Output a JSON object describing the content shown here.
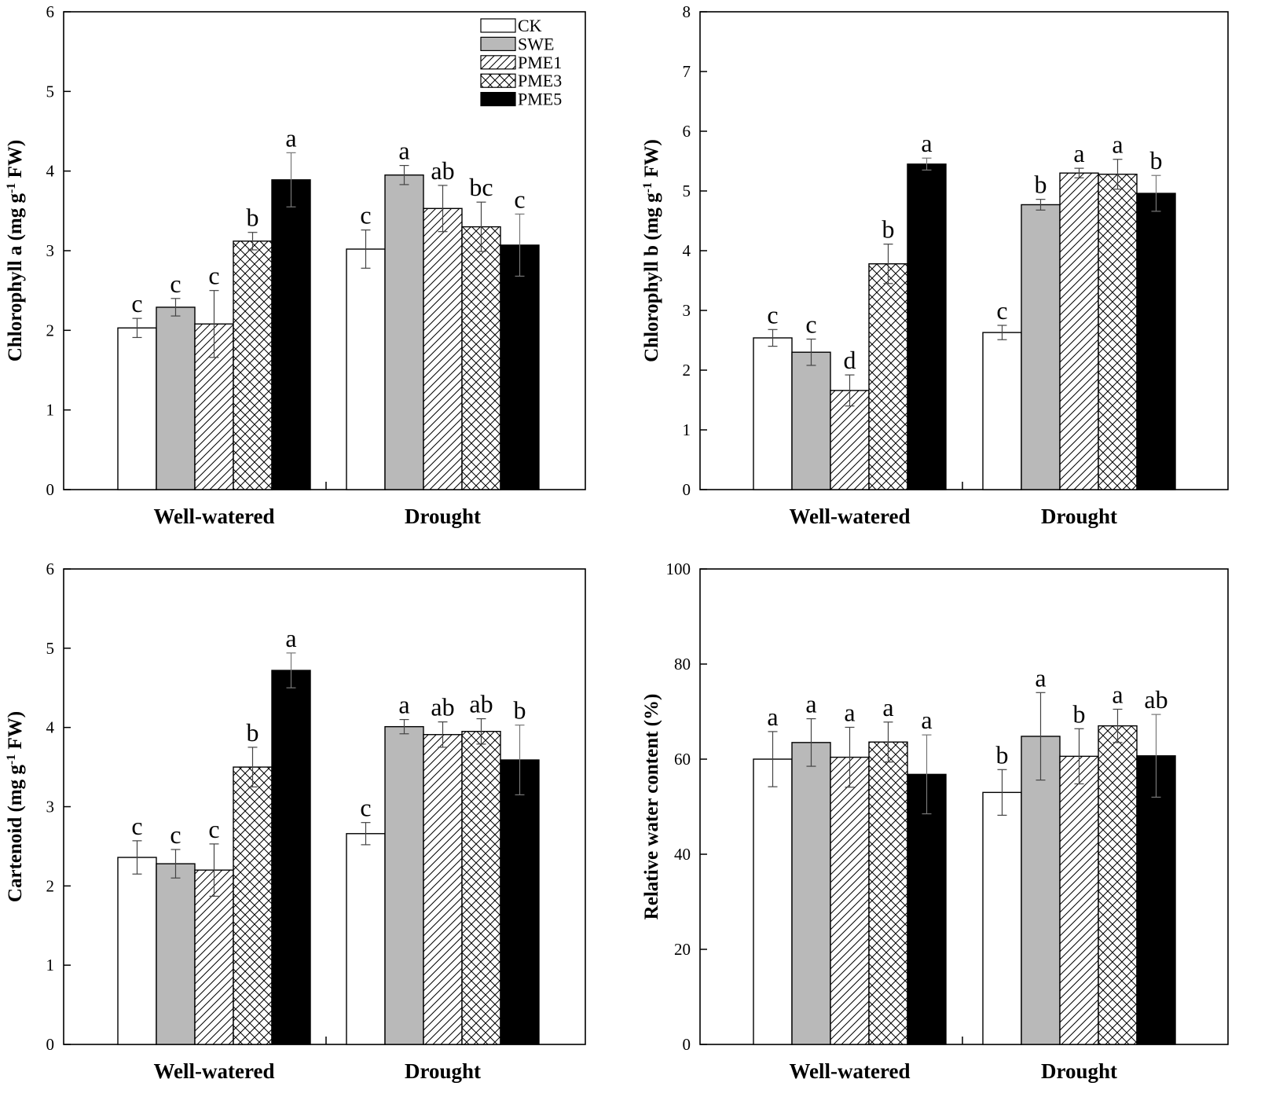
{
  "chart_data": [
    {
      "type": "bar",
      "panel": "top-left",
      "ylabel_parts": [
        "Chlorophyll a (mg g",
        "-1",
        " FW)"
      ],
      "ylim": [
        0,
        6
      ],
      "yticks": [
        "0",
        "1",
        "2",
        "3",
        "4",
        "5",
        "6"
      ],
      "categories": [
        "Well-watered",
        "Drought"
      ],
      "legend_position": "top-right",
      "series": [
        {
          "name": "CK",
          "values": [
            2.03,
            3.02
          ],
          "errors": [
            0.12,
            0.24
          ],
          "letters": [
            "c",
            "c"
          ]
        },
        {
          "name": "SWE",
          "values": [
            2.29,
            3.95
          ],
          "errors": [
            0.11,
            0.12
          ],
          "letters": [
            "c",
            "a"
          ]
        },
        {
          "name": "PME1",
          "values": [
            2.08,
            3.53
          ],
          "errors": [
            0.42,
            0.29
          ],
          "letters": [
            "c",
            "ab"
          ]
        },
        {
          "name": "PME3",
          "values": [
            3.12,
            3.3
          ],
          "errors": [
            0.11,
            0.31
          ],
          "letters": [
            "b",
            "bc"
          ]
        },
        {
          "name": "PME5",
          "values": [
            3.89,
            3.07
          ],
          "errors": [
            0.34,
            0.39
          ],
          "letters": [
            "a",
            "c"
          ]
        }
      ]
    },
    {
      "type": "bar",
      "panel": "top-right",
      "ylabel_parts": [
        "Chlorophyll b (mg g",
        "-1",
        " FW)"
      ],
      "ylim": [
        0,
        8
      ],
      "yticks": [
        "0",
        "1",
        "2",
        "3",
        "4",
        "5",
        "6",
        "7",
        "8"
      ],
      "categories": [
        "Well-watered",
        "Drought"
      ],
      "series": [
        {
          "name": "CK",
          "values": [
            2.54,
            2.63
          ],
          "errors": [
            0.14,
            0.12
          ],
          "letters": [
            "c",
            "c"
          ]
        },
        {
          "name": "SWE",
          "values": [
            2.3,
            4.77
          ],
          "errors": [
            0.22,
            0.09
          ],
          "letters": [
            "c",
            "b"
          ]
        },
        {
          "name": "PME1",
          "values": [
            1.66,
            5.3
          ],
          "errors": [
            0.26,
            0.08
          ],
          "letters": [
            "d",
            "a"
          ]
        },
        {
          "name": "PME3",
          "values": [
            3.78,
            5.28
          ],
          "errors": [
            0.33,
            0.25
          ],
          "letters": [
            "b",
            "a"
          ]
        },
        {
          "name": "PME5",
          "values": [
            5.45,
            4.96
          ],
          "errors": [
            0.1,
            0.3
          ],
          "letters": [
            "a",
            "b"
          ]
        }
      ]
    },
    {
      "type": "bar",
      "panel": "bottom-left",
      "ylabel_parts": [
        "Cartenoid (mg g",
        "-1",
        " FW)"
      ],
      "ylim": [
        0,
        6
      ],
      "yticks": [
        "0",
        "1",
        "2",
        "3",
        "4",
        "5",
        "6"
      ],
      "categories": [
        "Well-watered",
        "Drought"
      ],
      "series": [
        {
          "name": "CK",
          "values": [
            2.36,
            2.66
          ],
          "errors": [
            0.21,
            0.14
          ],
          "letters": [
            "c",
            "c"
          ]
        },
        {
          "name": "SWE",
          "values": [
            2.28,
            4.01
          ],
          "errors": [
            0.18,
            0.09
          ],
          "letters": [
            "c",
            "a"
          ]
        },
        {
          "name": "PME1",
          "values": [
            2.2,
            3.91
          ],
          "errors": [
            0.33,
            0.16
          ],
          "letters": [
            "c",
            "ab"
          ]
        },
        {
          "name": "PME3",
          "values": [
            3.5,
            3.95
          ],
          "errors": [
            0.25,
            0.16
          ],
          "letters": [
            "b",
            "ab"
          ]
        },
        {
          "name": "PME5",
          "values": [
            4.72,
            3.59
          ],
          "errors": [
            0.22,
            0.44
          ],
          "letters": [
            "a",
            "b"
          ]
        }
      ]
    },
    {
      "type": "bar",
      "panel": "bottom-right",
      "ylabel_parts": [
        "Relative water content (%)",
        "",
        ""
      ],
      "ylim": [
        0,
        100
      ],
      "yticks": [
        "0",
        "20",
        "40",
        "60",
        "80",
        "100"
      ],
      "categories": [
        "Well-watered",
        "Drought"
      ],
      "series": [
        {
          "name": "CK",
          "values": [
            60.0,
            53.0
          ],
          "errors": [
            5.8,
            4.8
          ],
          "letters": [
            "a",
            "b"
          ]
        },
        {
          "name": "SWE",
          "values": [
            63.5,
            64.8
          ],
          "errors": [
            5.0,
            9.2
          ],
          "letters": [
            "a",
            "a"
          ]
        },
        {
          "name": "PME1",
          "values": [
            60.4,
            60.6
          ],
          "errors": [
            6.3,
            5.8
          ],
          "letters": [
            "a",
            "b"
          ]
        },
        {
          "name": "PME3",
          "values": [
            63.6,
            67.0
          ],
          "errors": [
            4.2,
            3.5
          ],
          "letters": [
            "a",
            "a"
          ]
        },
        {
          "name": "PME5",
          "values": [
            56.8,
            60.7
          ],
          "errors": [
            8.3,
            8.7
          ],
          "letters": [
            "a",
            "ab"
          ]
        }
      ]
    }
  ],
  "legend": {
    "entries": [
      {
        "name": "CK",
        "fill": "#ffffff"
      },
      {
        "name": "SWE",
        "fill": "#b9b9b9"
      },
      {
        "name": "PME1",
        "fill": "hatch-diagonal"
      },
      {
        "name": "PME3",
        "fill": "crosshatch"
      },
      {
        "name": "PME5",
        "fill": "#000000"
      }
    ]
  },
  "colors": {
    "swe": "#b9b9b9",
    "pme5": "#000000",
    "ck": "#ffffff",
    "axis": "#000000"
  }
}
